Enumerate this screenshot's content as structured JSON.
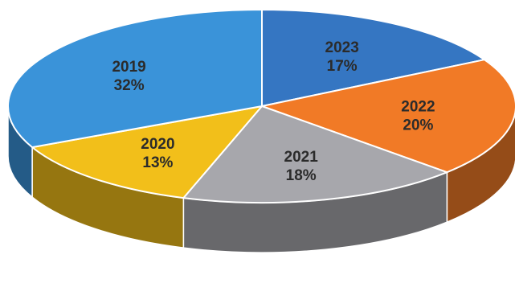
{
  "chart_data": {
    "type": "pie",
    "style": "3d",
    "legend": "none",
    "start_angle_deg": -90,
    "direction": "clockwise",
    "slices": [
      {
        "label": "2023",
        "value": 17,
        "value_label": "17%",
        "color": "#3576c2"
      },
      {
        "label": "2022",
        "value": 20,
        "value_label": "20%",
        "color": "#f17a26"
      },
      {
        "label": "2021",
        "value": 18,
        "value_label": "18%",
        "color": "#a7a7ac"
      },
      {
        "label": "2020",
        "value": 13,
        "value_label": "13%",
        "color": "#f2bf1a"
      },
      {
        "label": "2019",
        "value": 32,
        "value_label": "32%",
        "color": "#3a93d9"
      }
    ]
  }
}
